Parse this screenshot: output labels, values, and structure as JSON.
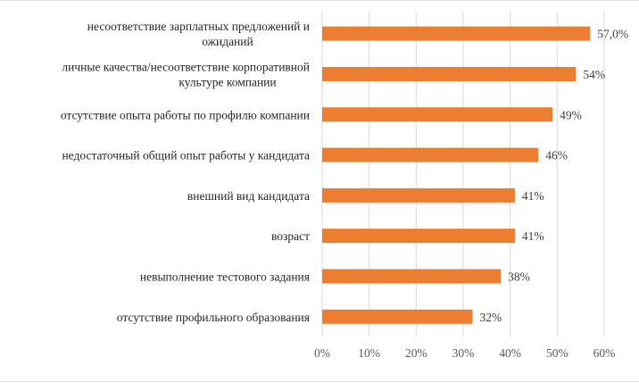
{
  "chart_data": {
    "type": "bar",
    "orientation": "horizontal",
    "title": "",
    "xlabel": "",
    "ylabel": "",
    "xlim": [
      0,
      60
    ],
    "ticks": [
      "0%",
      "10%",
      "20%",
      "30%",
      "40%",
      "50%",
      "60%"
    ],
    "tick_values": [
      0,
      10,
      20,
      30,
      40,
      50,
      60
    ],
    "grid": true,
    "bar_color": "#ED7D31",
    "categories": [
      [
        "несоответствие зарплатных предложений и",
        "ожиданий"
      ],
      [
        "личные качества/несоответствие корпоративной",
        "культуре компании"
      ],
      [
        "отсутствие опыта работы по профилю компании"
      ],
      [
        "недостаточный общий опыт работы у кандидата"
      ],
      [
        "внешний вид кандидата"
      ],
      [
        "возраст"
      ],
      [
        "невыполнение тестового задания"
      ],
      [
        "отсутствие профильного образования"
      ]
    ],
    "values": [
      57.0,
      54,
      49,
      46,
      41,
      41,
      38,
      32
    ],
    "value_labels": [
      "57,0%",
      "54%",
      "49%",
      "46%",
      "41%",
      "41%",
      "38%",
      "32%"
    ]
  }
}
